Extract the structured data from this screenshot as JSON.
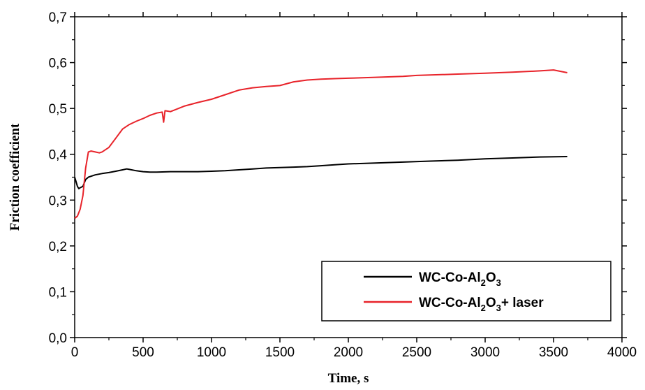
{
  "chart_data": {
    "type": "line",
    "title": "",
    "xlabel": "Time,  s",
    "ylabel": "Friction coefficient",
    "xlim": [
      0,
      4000
    ],
    "ylim": [
      0.0,
      0.7
    ],
    "xticks": [
      0,
      500,
      1000,
      1500,
      2000,
      2500,
      3000,
      3500,
      4000
    ],
    "xtick_labels": [
      "0",
      "500",
      "1000",
      "1500",
      "2000",
      "2500",
      "3000",
      "3500",
      "4000"
    ],
    "yticks": [
      0.0,
      0.1,
      0.2,
      0.3,
      0.4,
      0.5,
      0.6,
      0.7
    ],
    "ytick_labels": [
      "0,0",
      "0,1",
      "0,2",
      "0,3",
      "0,4",
      "0,5",
      "0,6",
      "0,7"
    ],
    "grid": false,
    "legend_position": "bottom-right",
    "series": [
      {
        "name_parts": [
          "WC-Co-Al",
          "2",
          "O",
          "3",
          ""
        ],
        "color": "#000000",
        "x": [
          0,
          10,
          20,
          30,
          40,
          60,
          80,
          100,
          150,
          200,
          250,
          300,
          350,
          380,
          400,
          450,
          500,
          550,
          600,
          700,
          800,
          900,
          1000,
          1100,
          1200,
          1300,
          1400,
          1500,
          1600,
          1700,
          1800,
          1900,
          2000,
          2200,
          2400,
          2600,
          2800,
          3000,
          3200,
          3400,
          3600
        ],
        "y": [
          0.35,
          0.34,
          0.33,
          0.325,
          0.327,
          0.33,
          0.345,
          0.35,
          0.355,
          0.358,
          0.36,
          0.363,
          0.366,
          0.368,
          0.367,
          0.364,
          0.362,
          0.361,
          0.361,
          0.362,
          0.362,
          0.362,
          0.363,
          0.364,
          0.366,
          0.368,
          0.37,
          0.371,
          0.372,
          0.373,
          0.375,
          0.377,
          0.379,
          0.381,
          0.383,
          0.385,
          0.387,
          0.39,
          0.392,
          0.394,
          0.395
        ]
      },
      {
        "name_parts": [
          "WC-Co-Al",
          "2",
          "O",
          "3",
          "+ laser"
        ],
        "color": "#e8232a",
        "x": [
          0,
          20,
          40,
          60,
          80,
          100,
          120,
          150,
          180,
          200,
          250,
          300,
          350,
          400,
          450,
          500,
          550,
          600,
          640,
          650,
          660,
          700,
          800,
          900,
          1000,
          1100,
          1200,
          1300,
          1400,
          1500,
          1600,
          1700,
          1800,
          1900,
          2000,
          2200,
          2400,
          2500,
          2600,
          2800,
          3000,
          3200,
          3400,
          3500,
          3600
        ],
        "y": [
          0.26,
          0.265,
          0.28,
          0.31,
          0.37,
          0.405,
          0.407,
          0.405,
          0.403,
          0.405,
          0.415,
          0.435,
          0.455,
          0.465,
          0.472,
          0.478,
          0.485,
          0.49,
          0.492,
          0.47,
          0.495,
          0.493,
          0.505,
          0.513,
          0.52,
          0.53,
          0.54,
          0.545,
          0.548,
          0.55,
          0.558,
          0.562,
          0.564,
          0.565,
          0.566,
          0.568,
          0.57,
          0.572,
          0.573,
          0.575,
          0.577,
          0.579,
          0.582,
          0.584,
          0.578
        ]
      }
    ]
  }
}
